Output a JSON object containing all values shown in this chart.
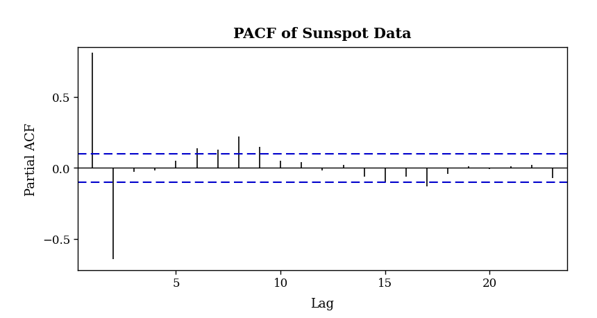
{
  "title": "PACF of Sunspot Data",
  "xlabel": "Lag",
  "ylabel": "Partial ACF",
  "pacf_values": [
    0.81,
    -0.64,
    -0.03,
    -0.02,
    0.05,
    0.14,
    0.13,
    0.22,
    0.15,
    0.05,
    0.04,
    -0.02,
    0.02,
    -0.06,
    -0.1,
    -0.06,
    -0.13,
    -0.04,
    0.01,
    -0.01,
    0.01,
    0.02,
    -0.07
  ],
  "lags": [
    1,
    2,
    3,
    4,
    5,
    6,
    7,
    8,
    9,
    10,
    11,
    12,
    13,
    14,
    15,
    16,
    17,
    18,
    19,
    20,
    21,
    22,
    23
  ],
  "ci": 0.1,
  "ci_color": "#0000CC",
  "bar_color": "#000000",
  "ylim": [
    -0.72,
    0.85
  ],
  "yticks": [
    -0.5,
    0.0,
    0.5
  ],
  "xticks": [
    5,
    10,
    15,
    20
  ],
  "xlim": [
    0.3,
    23.7
  ],
  "bg_color": "#FFFFFF",
  "title_fontsize": 15,
  "label_fontsize": 13,
  "tick_fontsize": 12
}
